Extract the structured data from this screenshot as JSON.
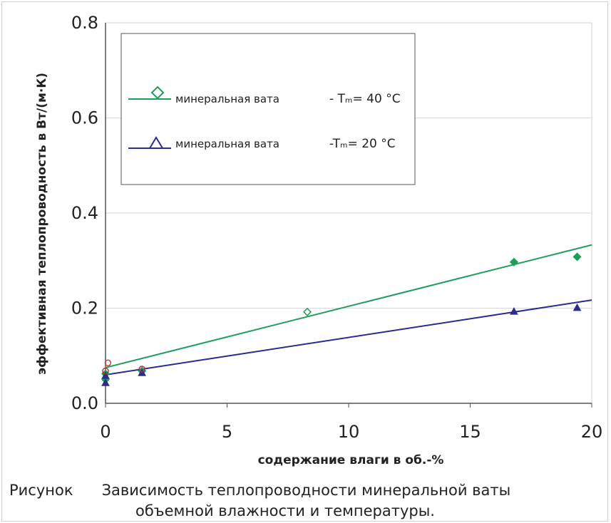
{
  "chart_data": {
    "type": "scatter",
    "xlabel": "содержание влаги в об.-%",
    "ylabel": "эффективная теплопроводность в Вт/(м·К)",
    "xlim": [
      0,
      20
    ],
    "ylim": [
      0,
      0.8
    ],
    "x_ticks": [
      "0",
      "5",
      "10",
      "15",
      "20"
    ],
    "y_ticks": [
      "0.0",
      "0.2",
      "0.4",
      "0.6",
      "0.8"
    ],
    "grid": "horizontal",
    "legend_position": "top-left",
    "series": [
      {
        "name": "минеральная вата",
        "temp_label": "- Tₘ= 40 °C",
        "color": "#1f9e5a",
        "marker": "diamond-open",
        "fit_line": [
          [
            0,
            0.075
          ],
          [
            20,
            0.333
          ]
        ],
        "points": [
          [
            0,
            0.05
          ],
          [
            0,
            0.062
          ],
          [
            1.5,
            0.068
          ],
          [
            8.3,
            0.192
          ],
          [
            16.8,
            0.297
          ],
          [
            19.4,
            0.308
          ]
        ]
      },
      {
        "name": "минеральная вата",
        "temp_label": "-Tₘ= 20 °C",
        "color": "#2a2d8a",
        "marker": "triangle-open",
        "fit_line": [
          [
            0,
            0.06
          ],
          [
            20,
            0.217
          ]
        ],
        "points": [
          [
            0,
            0.043
          ],
          [
            0,
            0.058
          ],
          [
            1.5,
            0.064
          ],
          [
            16.8,
            0.193
          ],
          [
            19.4,
            0.201
          ]
        ]
      }
    ],
    "extra_points": [
      {
        "x": 0.1,
        "y": 0.085,
        "color": "#d04040"
      },
      {
        "x": 0,
        "y": 0.068,
        "color": "#b03040"
      },
      {
        "x": 1.5,
        "y": 0.072,
        "color": "#b03040"
      }
    ]
  },
  "caption": {
    "label": "Рисунок",
    "text": "Зависимость теплопроводности минеральной ваты",
    "line2": "объемной влажности и температуры."
  }
}
